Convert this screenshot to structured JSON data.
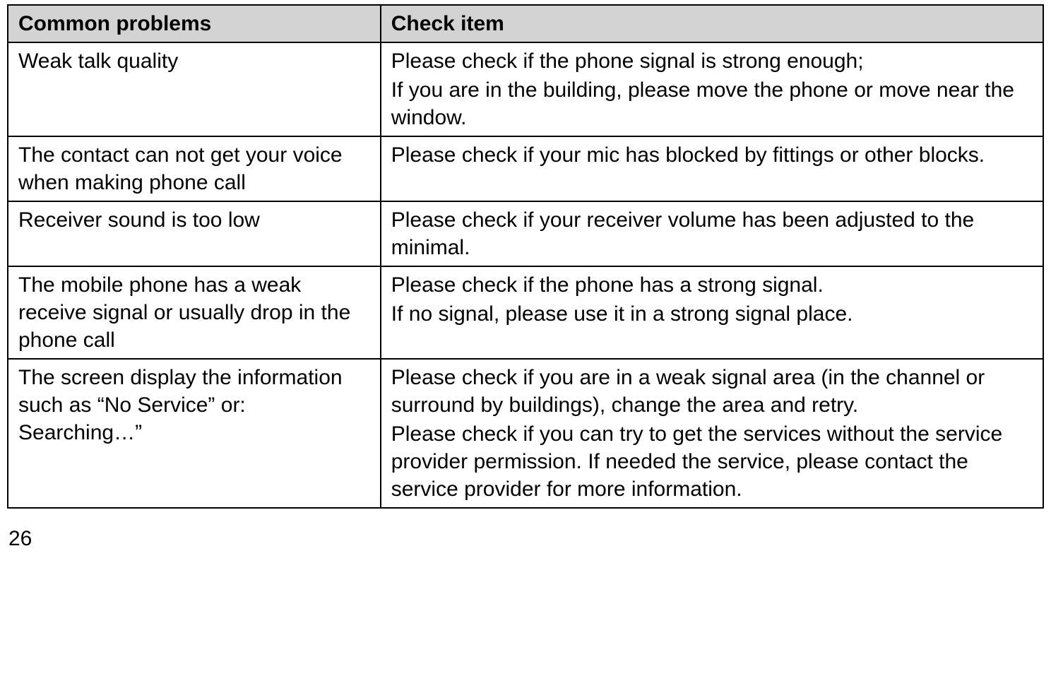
{
  "table": {
    "header_bg": "#d3d3d3",
    "border_color": "#000000",
    "font_family": "Arial",
    "font_size_pt": 22,
    "columns": [
      {
        "key": "problems",
        "label": "Common problems",
        "width_pct": 36
      },
      {
        "key": "check",
        "label": "Check item",
        "width_pct": 64
      }
    ],
    "rows": [
      {
        "problems": [
          "Weak talk quality"
        ],
        "check": [
          "Please check if the phone signal is strong enough;",
          "If you are in the building, please move the phone or move near the window."
        ]
      },
      {
        "problems": [
          "The contact can not get your voice when making phone call"
        ],
        "check": [
          "Please check if your mic has blocked by fittings or other blocks."
        ]
      },
      {
        "problems": [
          "Receiver sound is too low"
        ],
        "check": [
          "Please check if your receiver volume has been adjusted to the minimal."
        ]
      },
      {
        "problems": [
          "The mobile phone has a weak receive signal or usually drop in the phone call"
        ],
        "check": [
          "Please check if the phone has a strong signal.",
          "If no signal, please use it in a strong signal place."
        ]
      },
      {
        "problems": [
          "The screen display the information such as “No Service” or: Searching…”"
        ],
        "check": [
          "Please check if you are in a weak signal area (in the channel or surround by buildings), change the area and retry.",
          "Please check if you can try to get the services without the service provider permission. If needed the service, please contact the service provider for more information."
        ]
      }
    ]
  },
  "page_number": "26"
}
